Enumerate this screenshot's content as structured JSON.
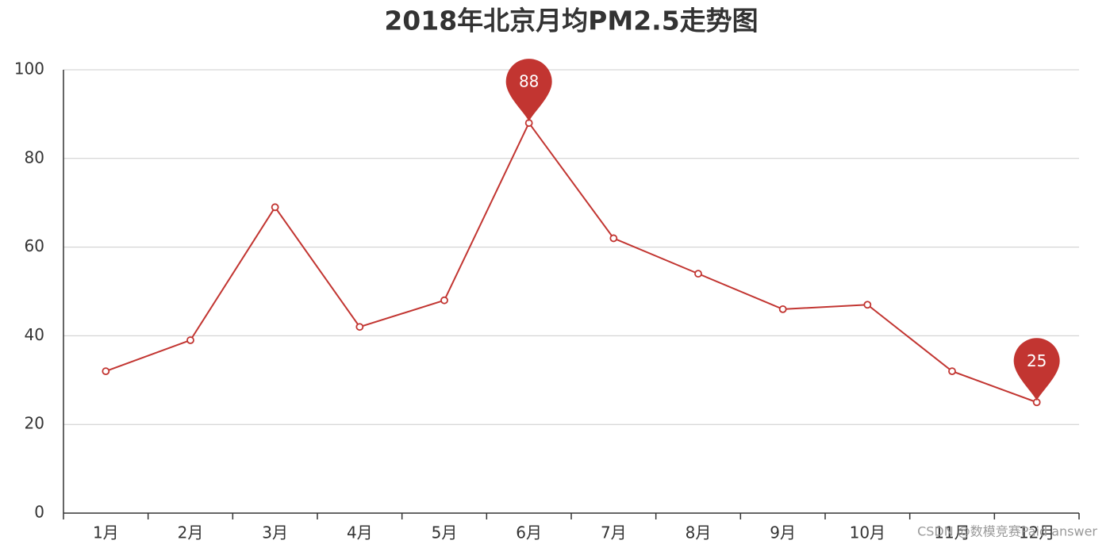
{
  "chart_data": {
    "type": "line",
    "title": "2018年北京月均PM2.5走势图",
    "categories": [
      "1月",
      "2月",
      "3月",
      "4月",
      "5月",
      "6月",
      "7月",
      "8月",
      "9月",
      "10月",
      "11月",
      "12月"
    ],
    "values": [
      32,
      39,
      69,
      42,
      48,
      88,
      62,
      54,
      46,
      47,
      32,
      25
    ],
    "color": "#c23531",
    "ylim": [
      0,
      100
    ],
    "yticks": [
      0,
      20,
      40,
      60,
      80,
      100
    ],
    "grid": true,
    "mark_points": [
      "max",
      "min"
    ],
    "watermark": "CSDN @数模竞赛Paid answer"
  }
}
